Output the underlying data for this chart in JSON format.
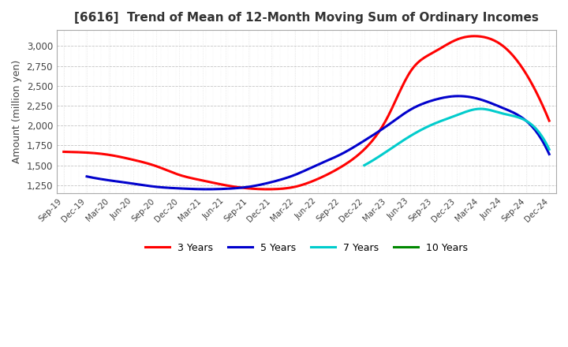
{
  "title": "[6616]  Trend of Mean of 12-Month Moving Sum of Ordinary Incomes",
  "ylabel": "Amount (million yen)",
  "background_color": "#ffffff",
  "plot_background": "#ffffff",
  "grid_color": "#aaaaaa",
  "ylim": [
    1150,
    3200
  ],
  "yticks": [
    1250,
    1500,
    1750,
    2000,
    2250,
    2500,
    2750,
    3000
  ],
  "legend": [
    "3 Years",
    "5 Years",
    "7 Years",
    "10 Years"
  ],
  "line_colors": [
    "#ff0000",
    "#0000cc",
    "#00cccc",
    "#008800"
  ],
  "dates": [
    "Sep-19",
    "Dec-19",
    "Mar-20",
    "Jun-20",
    "Sep-20",
    "Dec-20",
    "Mar-21",
    "Jun-21",
    "Sep-21",
    "Dec-21",
    "Mar-22",
    "Jun-22",
    "Sep-22",
    "Dec-22",
    "Mar-23",
    "Jun-23",
    "Sep-23",
    "Dec-23",
    "Mar-24",
    "Jun-24",
    "Sep-24",
    "Dec-24"
  ],
  "series_3yr": [
    1670,
    1660,
    1630,
    1570,
    1490,
    1380,
    1310,
    1250,
    1210,
    1200,
    1230,
    1330,
    1480,
    1700,
    2100,
    2680,
    2920,
    3080,
    3120,
    3000,
    2650,
    2060
  ],
  "series_5yr": [
    null,
    1360,
    1310,
    1270,
    1230,
    1210,
    1200,
    1205,
    1230,
    1290,
    1380,
    1510,
    1640,
    1810,
    2000,
    2200,
    2320,
    2370,
    2330,
    2220,
    2060,
    1640
  ],
  "series_7yr": [
    null,
    null,
    null,
    null,
    null,
    null,
    null,
    null,
    null,
    null,
    null,
    null,
    null,
    1500,
    1680,
    1870,
    2020,
    2130,
    2210,
    2150,
    2060,
    1700
  ],
  "series_10yr": [
    null,
    null,
    null,
    null,
    null,
    null,
    null,
    null,
    null,
    null,
    null,
    null,
    null,
    null,
    null,
    null,
    null,
    null,
    null,
    null,
    null,
    null
  ]
}
